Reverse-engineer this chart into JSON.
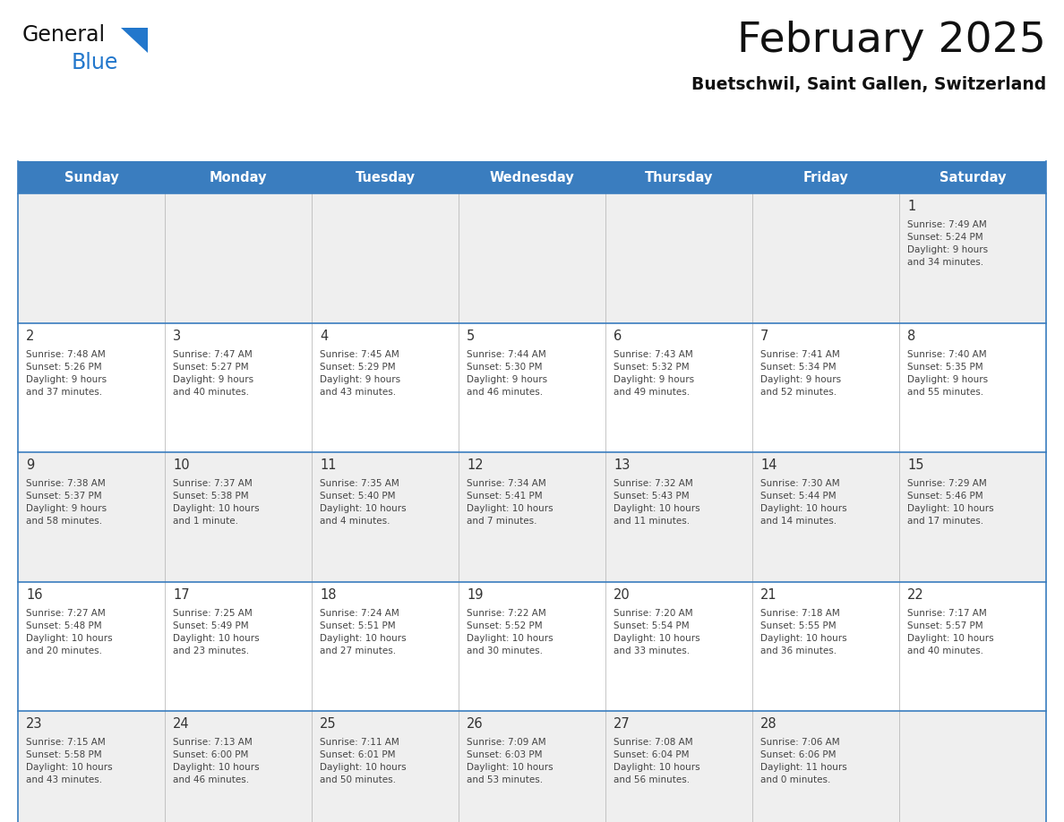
{
  "title": "February 2025",
  "subtitle": "Buetschwil, Saint Gallen, Switzerland",
  "header_color": "#3a7dbf",
  "header_text_color": "#FFFFFF",
  "day_names": [
    "Sunday",
    "Monday",
    "Tuesday",
    "Wednesday",
    "Thursday",
    "Friday",
    "Saturday"
  ],
  "background_color": "#FFFFFF",
  "row_colors": [
    "#EFEFEF",
    "#FFFFFF",
    "#EFEFEF",
    "#FFFFFF",
    "#EFEFEF"
  ],
  "cell_border_color": "#3a7dbf",
  "day_num_color": "#333333",
  "info_color": "#444444",
  "logo_black": "#111111",
  "logo_blue": "#2277CC",
  "calendar": [
    [
      {
        "day": "",
        "info": ""
      },
      {
        "day": "",
        "info": ""
      },
      {
        "day": "",
        "info": ""
      },
      {
        "day": "",
        "info": ""
      },
      {
        "day": "",
        "info": ""
      },
      {
        "day": "",
        "info": ""
      },
      {
        "day": "1",
        "info": "Sunrise: 7:49 AM\nSunset: 5:24 PM\nDaylight: 9 hours\nand 34 minutes."
      }
    ],
    [
      {
        "day": "2",
        "info": "Sunrise: 7:48 AM\nSunset: 5:26 PM\nDaylight: 9 hours\nand 37 minutes."
      },
      {
        "day": "3",
        "info": "Sunrise: 7:47 AM\nSunset: 5:27 PM\nDaylight: 9 hours\nand 40 minutes."
      },
      {
        "day": "4",
        "info": "Sunrise: 7:45 AM\nSunset: 5:29 PM\nDaylight: 9 hours\nand 43 minutes."
      },
      {
        "day": "5",
        "info": "Sunrise: 7:44 AM\nSunset: 5:30 PM\nDaylight: 9 hours\nand 46 minutes."
      },
      {
        "day": "6",
        "info": "Sunrise: 7:43 AM\nSunset: 5:32 PM\nDaylight: 9 hours\nand 49 minutes."
      },
      {
        "day": "7",
        "info": "Sunrise: 7:41 AM\nSunset: 5:34 PM\nDaylight: 9 hours\nand 52 minutes."
      },
      {
        "day": "8",
        "info": "Sunrise: 7:40 AM\nSunset: 5:35 PM\nDaylight: 9 hours\nand 55 minutes."
      }
    ],
    [
      {
        "day": "9",
        "info": "Sunrise: 7:38 AM\nSunset: 5:37 PM\nDaylight: 9 hours\nand 58 minutes."
      },
      {
        "day": "10",
        "info": "Sunrise: 7:37 AM\nSunset: 5:38 PM\nDaylight: 10 hours\nand 1 minute."
      },
      {
        "day": "11",
        "info": "Sunrise: 7:35 AM\nSunset: 5:40 PM\nDaylight: 10 hours\nand 4 minutes."
      },
      {
        "day": "12",
        "info": "Sunrise: 7:34 AM\nSunset: 5:41 PM\nDaylight: 10 hours\nand 7 minutes."
      },
      {
        "day": "13",
        "info": "Sunrise: 7:32 AM\nSunset: 5:43 PM\nDaylight: 10 hours\nand 11 minutes."
      },
      {
        "day": "14",
        "info": "Sunrise: 7:30 AM\nSunset: 5:44 PM\nDaylight: 10 hours\nand 14 minutes."
      },
      {
        "day": "15",
        "info": "Sunrise: 7:29 AM\nSunset: 5:46 PM\nDaylight: 10 hours\nand 17 minutes."
      }
    ],
    [
      {
        "day": "16",
        "info": "Sunrise: 7:27 AM\nSunset: 5:48 PM\nDaylight: 10 hours\nand 20 minutes."
      },
      {
        "day": "17",
        "info": "Sunrise: 7:25 AM\nSunset: 5:49 PM\nDaylight: 10 hours\nand 23 minutes."
      },
      {
        "day": "18",
        "info": "Sunrise: 7:24 AM\nSunset: 5:51 PM\nDaylight: 10 hours\nand 27 minutes."
      },
      {
        "day": "19",
        "info": "Sunrise: 7:22 AM\nSunset: 5:52 PM\nDaylight: 10 hours\nand 30 minutes."
      },
      {
        "day": "20",
        "info": "Sunrise: 7:20 AM\nSunset: 5:54 PM\nDaylight: 10 hours\nand 33 minutes."
      },
      {
        "day": "21",
        "info": "Sunrise: 7:18 AM\nSunset: 5:55 PM\nDaylight: 10 hours\nand 36 minutes."
      },
      {
        "day": "22",
        "info": "Sunrise: 7:17 AM\nSunset: 5:57 PM\nDaylight: 10 hours\nand 40 minutes."
      }
    ],
    [
      {
        "day": "23",
        "info": "Sunrise: 7:15 AM\nSunset: 5:58 PM\nDaylight: 10 hours\nand 43 minutes."
      },
      {
        "day": "24",
        "info": "Sunrise: 7:13 AM\nSunset: 6:00 PM\nDaylight: 10 hours\nand 46 minutes."
      },
      {
        "day": "25",
        "info": "Sunrise: 7:11 AM\nSunset: 6:01 PM\nDaylight: 10 hours\nand 50 minutes."
      },
      {
        "day": "26",
        "info": "Sunrise: 7:09 AM\nSunset: 6:03 PM\nDaylight: 10 hours\nand 53 minutes."
      },
      {
        "day": "27",
        "info": "Sunrise: 7:08 AM\nSunset: 6:04 PM\nDaylight: 10 hours\nand 56 minutes."
      },
      {
        "day": "28",
        "info": "Sunrise: 7:06 AM\nSunset: 6:06 PM\nDaylight: 11 hours\nand 0 minutes."
      },
      {
        "day": "",
        "info": ""
      }
    ]
  ]
}
